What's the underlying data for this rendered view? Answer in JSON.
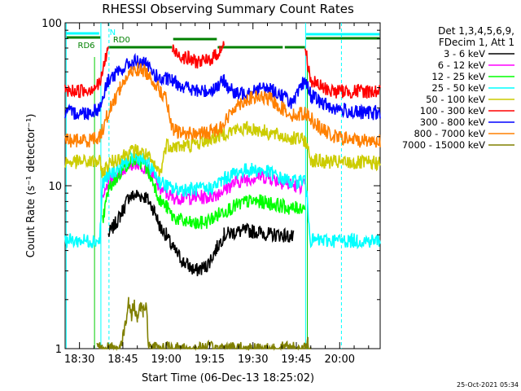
{
  "chart_data": {
    "type": "line",
    "title": "RHESSI Observing Summary Count Rates",
    "xlabel": "Start Time (06-Dec-13 18:25:02)",
    "ylabel": "Count Rate (s⁻¹ detector⁻¹)",
    "yscale": "log",
    "ylim": [
      1,
      100
    ],
    "xlim_min": [
      25.03,
      134.0
    ],
    "x_units": "minutes after 18:00",
    "x_ticks": [
      {
        "value": 30,
        "label": "18:30"
      },
      {
        "value": 45,
        "label": "18:45"
      },
      {
        "value": 60,
        "label": "19:00"
      },
      {
        "value": 75,
        "label": "19:15"
      },
      {
        "value": 90,
        "label": "19:30"
      },
      {
        "value": 105,
        "label": "19:45"
      },
      {
        "value": 120,
        "label": "20:00"
      }
    ],
    "y_ticks": [
      {
        "value": 1,
        "label": "1"
      },
      {
        "value": 10,
        "label": "10"
      },
      {
        "value": 100,
        "label": "100"
      }
    ],
    "legend_header": [
      "Det 1,3,4,5,6,9,",
      "FDecim 1, Att 1"
    ],
    "legend_position": "right",
    "series": [
      {
        "name": "3 - 6 keV",
        "color": "#000000",
        "x": [
          25,
          35,
          38,
          40,
          44,
          47,
          50,
          53,
          56,
          58,
          60,
          62,
          66,
          70,
          74,
          77,
          80,
          84,
          88,
          92,
          96,
          100,
          104,
          108,
          112,
          116,
          120,
          124,
          128,
          134
        ],
        "y": [
          null,
          null,
          null,
          5.0,
          6.5,
          8.5,
          8.8,
          8.5,
          7.0,
          5.5,
          5.0,
          4.2,
          3.4,
          3.0,
          3.2,
          4.0,
          5.0,
          5.2,
          5.3,
          5.2,
          5.0,
          5.0,
          4.8,
          null,
          null,
          null,
          null,
          null,
          null,
          null
        ]
      },
      {
        "name": "6 - 12 keV",
        "color": "#ff00ff",
        "x": [
          38,
          40,
          44,
          47,
          50,
          53,
          56,
          58,
          60,
          62,
          66,
          70,
          74,
          77,
          80,
          84,
          88,
          92,
          96,
          100,
          104,
          108
        ],
        "y": [
          8.0,
          10.5,
          12.0,
          13.5,
          13.8,
          13.0,
          11.0,
          9.5,
          9.0,
          8.5,
          8.5,
          8.5,
          8.5,
          8.8,
          9.5,
          10.5,
          11.0,
          11.5,
          11.2,
          10.5,
          10.0,
          10.0
        ]
      },
      {
        "name": "12 - 25 keV",
        "color": "#00ff00",
        "x": [
          38,
          40,
          44,
          47,
          50,
          53,
          56,
          58,
          60,
          62,
          66,
          70,
          74,
          77,
          80,
          84,
          88,
          92,
          96,
          100,
          104,
          108
        ],
        "y": [
          6.0,
          9.5,
          12.0,
          14.0,
          14.5,
          13.0,
          10.0,
          8.0,
          7.5,
          6.5,
          6.0,
          5.8,
          6.0,
          6.5,
          7.0,
          7.5,
          8.0,
          8.0,
          7.8,
          7.5,
          7.2,
          7.5
        ]
      },
      {
        "name": "25 - 50 keV",
        "color": "#00ffff",
        "x": [
          25,
          29,
          33,
          37,
          38,
          40,
          44,
          47,
          50,
          53,
          56,
          58,
          60,
          62,
          66,
          70,
          74,
          77,
          80,
          84,
          88,
          92,
          96,
          100,
          104,
          108,
          110,
          114,
          118,
          122,
          126,
          130,
          134
        ],
        "y": [
          4.6,
          4.6,
          4.6,
          4.6,
          10.5,
          11.5,
          13.0,
          14.5,
          15.0,
          14.0,
          12.0,
          10.5,
          10.0,
          9.5,
          9.5,
          9.5,
          9.5,
          10.0,
          11.0,
          12.0,
          12.5,
          12.5,
          12.0,
          11.0,
          10.5,
          11.0,
          4.6,
          4.6,
          4.6,
          4.6,
          4.6,
          4.6,
          4.6
        ]
      },
      {
        "name": "50 - 100 keV",
        "color": "#cccc00",
        "x": [
          25,
          29,
          33,
          37,
          38,
          40,
          44,
          47,
          50,
          53,
          56,
          58,
          60,
          62,
          66,
          70,
          74,
          77,
          80,
          84,
          88,
          92,
          96,
          100,
          104,
          108,
          110,
          114,
          118,
          122,
          126,
          130,
          134
        ],
        "y": [
          14.0,
          14.0,
          14.0,
          14.0,
          12.0,
          13.5,
          15.0,
          16.0,
          16.5,
          15.5,
          13.0,
          12.0,
          18.0,
          17.5,
          17.5,
          18.0,
          19.0,
          20.0,
          21.0,
          22.0,
          22.5,
          22.0,
          21.0,
          20.0,
          19.5,
          19.0,
          14.5,
          14.0,
          14.0,
          13.8,
          13.8,
          13.8,
          13.8
        ]
      },
      {
        "name": "100 - 300 keV",
        "color": "#ff0000",
        "x": [
          25,
          29,
          33,
          37,
          40,
          44,
          47,
          50,
          53,
          56,
          58,
          60,
          62,
          66,
          70,
          74,
          77,
          80,
          84,
          88,
          92,
          96,
          100,
          104,
          108,
          110,
          114,
          118,
          122,
          126,
          130,
          134
        ],
        "y": [
          38.0,
          38.0,
          39.0,
          42.0,
          72.0,
          null,
          null,
          null,
          null,
          null,
          null,
          null,
          68.0,
          62.0,
          58.0,
          58.0,
          63.0,
          72.0,
          null,
          null,
          null,
          null,
          null,
          null,
          72.0,
          44.0,
          40.0,
          38.0,
          38.0,
          38.0,
          38.0,
          38.0
        ]
      },
      {
        "name": "300 - 800 keV",
        "color": "#0000ff",
        "x": [
          25,
          29,
          33,
          37,
          40,
          44,
          47,
          50,
          53,
          56,
          58,
          60,
          62,
          66,
          70,
          74,
          77,
          80,
          84,
          88,
          92,
          96,
          100,
          104,
          108,
          110,
          114,
          118,
          122,
          126,
          130,
          134
        ],
        "y": [
          28.0,
          28.0,
          28.0,
          30.0,
          45.0,
          50.0,
          56.0,
          58.0,
          55.0,
          48.0,
          44.0,
          45.0,
          44.0,
          41.0,
          38.0,
          38.0,
          40.0,
          44.0,
          36.0,
          38.0,
          39.5,
          39.0,
          36.0,
          32.0,
          45.0,
          36.0,
          32.0,
          30.0,
          29.0,
          28.0,
          28.0,
          28.0
        ]
      },
      {
        "name": "800 - 7000 keV",
        "color": "#ff8000",
        "x": [
          25,
          29,
          33,
          37,
          40,
          44,
          47,
          50,
          53,
          56,
          58,
          60,
          62,
          66,
          70,
          74,
          77,
          80,
          84,
          88,
          92,
          96,
          100,
          104,
          108,
          110,
          114,
          118,
          122,
          126,
          130,
          134
        ],
        "y": [
          19.0,
          19.0,
          19.0,
          20.0,
          28.0,
          40.0,
          48.0,
          52.0,
          50.0,
          43.0,
          38.0,
          34.0,
          22.0,
          21.0,
          21.0,
          21.0,
          22.0,
          24.0,
          31.0,
          34.0,
          35.0,
          34.0,
          30.0,
          27.0,
          28.0,
          26.0,
          22.0,
          20.0,
          19.5,
          19.0,
          19.0,
          19.0
        ]
      },
      {
        "name": "7000 - 15000 keV",
        "color": "#808000",
        "x": [
          25,
          35,
          36,
          44,
          46,
          47,
          48,
          49,
          50,
          51,
          52,
          53,
          54,
          56,
          80,
          100,
          108,
          109,
          110,
          134
        ],
        "y": [
          null,
          null,
          1.0,
          1.0,
          1.4,
          1.9,
          1.6,
          1.9,
          1.5,
          1.9,
          1.7,
          1.9,
          1.0,
          1.0,
          1.0,
          1.0,
          1.0,
          1.1,
          1.0,
          null
        ]
      }
    ],
    "annotations": [
      {
        "label": "RD6",
        "color": "#008000"
      },
      {
        "label": "RD0",
        "color": "#008000"
      },
      {
        "label": "N",
        "color": "#00ffff"
      }
    ],
    "timestamp": "25-Oct-2021 05:34"
  }
}
